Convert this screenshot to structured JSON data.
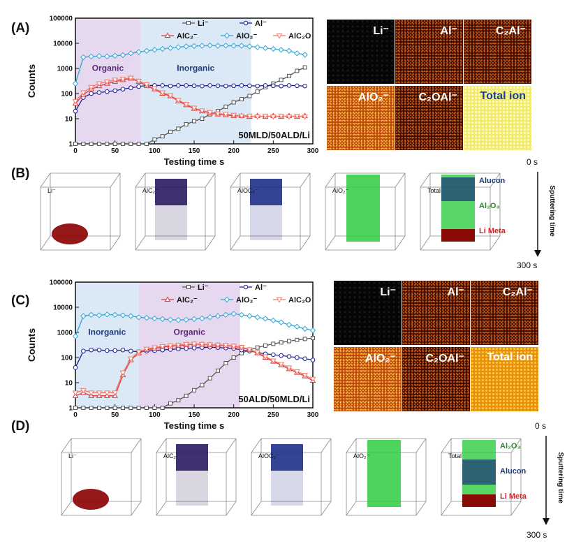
{
  "panels": {
    "A": {
      "label": "(A)"
    },
    "B": {
      "label": "(B)"
    },
    "C": {
      "label": "(C)"
    },
    "D": {
      "label": "(D)"
    }
  },
  "chart_data": [
    {
      "id": "A",
      "type": "line",
      "xlabel": "Testing time s",
      "ylabel": "Counts",
      "yscale": "log",
      "ylim": [
        1,
        100000
      ],
      "xlim": [
        0,
        300
      ],
      "xticks": [
        "0",
        "50",
        "100",
        "150",
        "200",
        "250",
        "300"
      ],
      "yticks": [
        "1",
        "10",
        "100",
        "1000",
        "10000",
        "100000"
      ],
      "regions": [
        {
          "label": "Organic",
          "x": [
            0,
            82
          ],
          "color": "#e6d8ee"
        },
        {
          "label": "Inorganic",
          "x": [
            82,
            222
          ],
          "color": "#dbe8f5"
        }
      ],
      "sample": "50MLD/50ALD/Li",
      "legend": [
        "Li⁻",
        "Al⁻",
        "AlC₂⁻",
        "AlO₂⁻",
        "AlC₂O"
      ],
      "series": [
        {
          "name": "Li⁻",
          "color": "#555555",
          "marker": "square",
          "x": [
            0,
            10,
            20,
            30,
            40,
            50,
            60,
            70,
            80,
            90,
            100,
            110,
            120,
            130,
            140,
            150,
            160,
            170,
            180,
            190,
            200,
            210,
            220,
            230,
            240,
            250,
            260,
            270,
            280,
            290
          ],
          "y": [
            1,
            1,
            1,
            1,
            1,
            1,
            1,
            1,
            1,
            1,
            1.5,
            2,
            3,
            4,
            6,
            8,
            10,
            15,
            20,
            30,
            45,
            60,
            80,
            120,
            180,
            250,
            350,
            500,
            800,
            1100
          ]
        },
        {
          "name": "Al⁻",
          "color": "#1f1f8f",
          "marker": "circle",
          "x": [
            0,
            10,
            20,
            30,
            40,
            50,
            60,
            70,
            80,
            90,
            100,
            110,
            120,
            130,
            140,
            150,
            160,
            170,
            180,
            190,
            200,
            210,
            220,
            230,
            240,
            250,
            260,
            270,
            280,
            290
          ],
          "y": [
            20,
            70,
            100,
            110,
            120,
            130,
            150,
            170,
            190,
            210,
            210,
            210,
            200,
            210,
            210,
            205,
            200,
            210,
            205,
            200,
            205,
            210,
            205,
            200,
            210,
            205,
            200,
            210,
            205,
            200
          ]
        },
        {
          "name": "AlC₂⁻",
          "color": "#e0393e",
          "marker": "triangle",
          "x": [
            0,
            10,
            20,
            30,
            40,
            50,
            60,
            70,
            80,
            90,
            100,
            110,
            120,
            130,
            140,
            150,
            160,
            170,
            180,
            190,
            200,
            210,
            220,
            230,
            240,
            250,
            260,
            270,
            280,
            290
          ],
          "y": [
            40,
            90,
            150,
            200,
            250,
            300,
            350,
            400,
            300,
            200,
            150,
            100,
            80,
            50,
            35,
            25,
            20,
            17,
            15,
            14,
            13,
            13,
            12,
            13,
            12,
            13,
            12,
            13,
            12,
            13
          ]
        },
        {
          "name": "AlO₂⁻",
          "color": "#2ea7d8",
          "marker": "diamond",
          "x": [
            0,
            10,
            20,
            30,
            40,
            50,
            60,
            70,
            80,
            90,
            100,
            110,
            120,
            130,
            140,
            150,
            160,
            170,
            180,
            190,
            200,
            210,
            220,
            230,
            240,
            250,
            260,
            270,
            280,
            290
          ],
          "y": [
            250,
            2800,
            3000,
            3100,
            3000,
            3200,
            3400,
            4000,
            4500,
            5000,
            5500,
            6000,
            6500,
            7000,
            7500,
            7800,
            8000,
            8200,
            8000,
            8100,
            8000,
            8000,
            7500,
            7000,
            6500,
            6000,
            5500,
            5000,
            4000,
            3500
          ]
        },
        {
          "name": "AlC₂O",
          "color": "#f07a6a",
          "marker": "invtriangle",
          "x": [
            0,
            10,
            20,
            30,
            40,
            50,
            60,
            70,
            80,
            90,
            100,
            110,
            120,
            130,
            140,
            150,
            160,
            170,
            180,
            190,
            200,
            210,
            220,
            230,
            240,
            250,
            260,
            270,
            280,
            290
          ],
          "y": [
            50,
            110,
            180,
            250,
            300,
            350,
            380,
            420,
            320,
            230,
            160,
            110,
            85,
            55,
            38,
            27,
            21,
            18,
            16,
            15,
            14,
            13,
            13,
            12,
            13,
            12,
            13,
            12,
            13,
            12
          ]
        }
      ]
    },
    {
      "id": "C",
      "type": "line",
      "xlabel": "Testing time s",
      "ylabel": "Counts",
      "yscale": "log",
      "ylim": [
        1,
        100000
      ],
      "xlim": [
        0,
        300
      ],
      "xticks": [
        "0",
        "50",
        "100",
        "150",
        "200",
        "250",
        "300"
      ],
      "yticks": [
        "1",
        "10",
        "100",
        "1000",
        "10000",
        "100000"
      ],
      "regions": [
        {
          "label": "Inorganic",
          "x": [
            0,
            80
          ],
          "color": "#dbe8f5"
        },
        {
          "label": "Organic",
          "x": [
            80,
            208
          ],
          "color": "#e6d8ee"
        }
      ],
      "sample": "50ALD/50MLD/Li",
      "legend": [
        "Li⁻",
        "Al⁻",
        "AlC₂⁻",
        "AlO₂⁻",
        "AlC₂O"
      ],
      "series": [
        {
          "name": "Li⁻",
          "color": "#555555",
          "marker": "square",
          "x": [
            0,
            10,
            20,
            30,
            40,
            50,
            60,
            70,
            80,
            90,
            100,
            110,
            120,
            130,
            140,
            150,
            160,
            170,
            180,
            190,
            200,
            210,
            220,
            230,
            240,
            250,
            260,
            270,
            280,
            290,
            300
          ],
          "y": [
            1,
            1,
            1,
            1,
            1,
            1,
            1,
            1,
            1,
            1,
            1,
            1,
            1.5,
            2,
            3,
            5,
            8,
            15,
            30,
            60,
            100,
            150,
            200,
            250,
            300,
            350,
            400,
            450,
            500,
            550,
            600
          ]
        },
        {
          "name": "Al⁻",
          "color": "#1f1f8f",
          "marker": "circle",
          "x": [
            0,
            10,
            20,
            30,
            40,
            50,
            60,
            70,
            80,
            90,
            100,
            110,
            120,
            130,
            140,
            150,
            160,
            170,
            180,
            190,
            200,
            210,
            220,
            230,
            240,
            250,
            260,
            270,
            280,
            290,
            300
          ],
          "y": [
            40,
            180,
            200,
            200,
            190,
            190,
            200,
            180,
            170,
            180,
            190,
            200,
            210,
            220,
            230,
            240,
            250,
            260,
            250,
            240,
            230,
            200,
            180,
            160,
            140,
            130,
            120,
            110,
            100,
            90,
            80
          ]
        },
        {
          "name": "AlC₂⁻",
          "color": "#e0393e",
          "marker": "triangle",
          "x": [
            0,
            10,
            20,
            30,
            40,
            50,
            60,
            70,
            80,
            90,
            100,
            110,
            120,
            130,
            140,
            150,
            160,
            170,
            180,
            190,
            200,
            210,
            220,
            230,
            240,
            250,
            260,
            270,
            280,
            290,
            300
          ],
          "y": [
            3,
            4,
            3,
            3,
            3,
            3,
            20,
            80,
            150,
            200,
            230,
            260,
            280,
            300,
            320,
            340,
            330,
            320,
            310,
            300,
            280,
            250,
            200,
            150,
            100,
            70,
            50,
            35,
            25,
            18,
            12
          ]
        },
        {
          "name": "AlO₂⁻",
          "color": "#2ea7d8",
          "marker": "diamond",
          "x": [
            0,
            10,
            20,
            30,
            40,
            50,
            60,
            70,
            80,
            90,
            100,
            110,
            120,
            130,
            140,
            150,
            160,
            170,
            180,
            190,
            200,
            210,
            220,
            230,
            240,
            250,
            260,
            270,
            280,
            290,
            300
          ],
          "y": [
            700,
            4500,
            5000,
            4800,
            5200,
            5000,
            4800,
            4500,
            4000,
            3800,
            3600,
            3400,
            3200,
            3100,
            3200,
            3400,
            3600,
            4000,
            4500,
            5000,
            5500,
            5000,
            4500,
            4000,
            3500,
            3000,
            2500,
            2000,
            1700,
            1400,
            1200
          ]
        },
        {
          "name": "AlC₂O",
          "color": "#f07a6a",
          "marker": "invtriangle",
          "x": [
            0,
            10,
            20,
            30,
            40,
            50,
            60,
            70,
            80,
            90,
            100,
            110,
            120,
            130,
            140,
            150,
            160,
            170,
            180,
            190,
            200,
            210,
            220,
            230,
            240,
            250,
            260,
            270,
            280,
            290,
            300
          ],
          "y": [
            4,
            5,
            4,
            4,
            4,
            4,
            25,
            90,
            170,
            220,
            250,
            280,
            300,
            320,
            340,
            350,
            340,
            330,
            320,
            310,
            290,
            260,
            210,
            160,
            110,
            75,
            55,
            40,
            28,
            20,
            14
          ]
        }
      ]
    }
  ],
  "tilesA": [
    {
      "label": "Li⁻",
      "style": "black"
    },
    {
      "label": "Al⁻",
      "style": "dark"
    },
    {
      "label": "C₂Al⁻",
      "style": "dark"
    },
    {
      "label": "AlO₂⁻",
      "style": "orange"
    },
    {
      "label": "C₂OAl⁻",
      "style": "dark"
    },
    {
      "label": "Total ion",
      "style": "yellow"
    }
  ],
  "tilesC": [
    {
      "label": "Li⁻",
      "style": "black"
    },
    {
      "label": "Al⁻",
      "style": "dark"
    },
    {
      "label": "C₂Al⁻",
      "style": "dark"
    },
    {
      "label": "AlO₂⁻",
      "style": "orange"
    },
    {
      "label": "C₂OAl⁻",
      "style": "dark"
    },
    {
      "label": "Total ion",
      "style": "amber"
    }
  ],
  "cubesB": [
    "Li⁻",
    "AlC₂⁻",
    "AlOC₂⁻",
    "AlO₂⁻",
    "Total"
  ],
  "cubesD": [
    "Li⁻",
    "AlC₂⁻",
    "AlOC₂⁻",
    "AlO₂⁻",
    "Total"
  ],
  "layersB": [
    {
      "text": "Alucone",
      "color": "#1f3c7a"
    },
    {
      "text": "Al₂O₃",
      "color": "#2a8a2a"
    },
    {
      "text": "Li Metal",
      "color": "#d0232a"
    }
  ],
  "layersD": [
    {
      "text": "Al₂O₃",
      "color": "#2a8a2a"
    },
    {
      "text": "Alucone",
      "color": "#1f3c7a"
    },
    {
      "text": "Li Metal",
      "color": "#d0232a"
    }
  ],
  "sputter": {
    "start": "0 s",
    "end": "300 s",
    "label": "Sputtering time"
  }
}
